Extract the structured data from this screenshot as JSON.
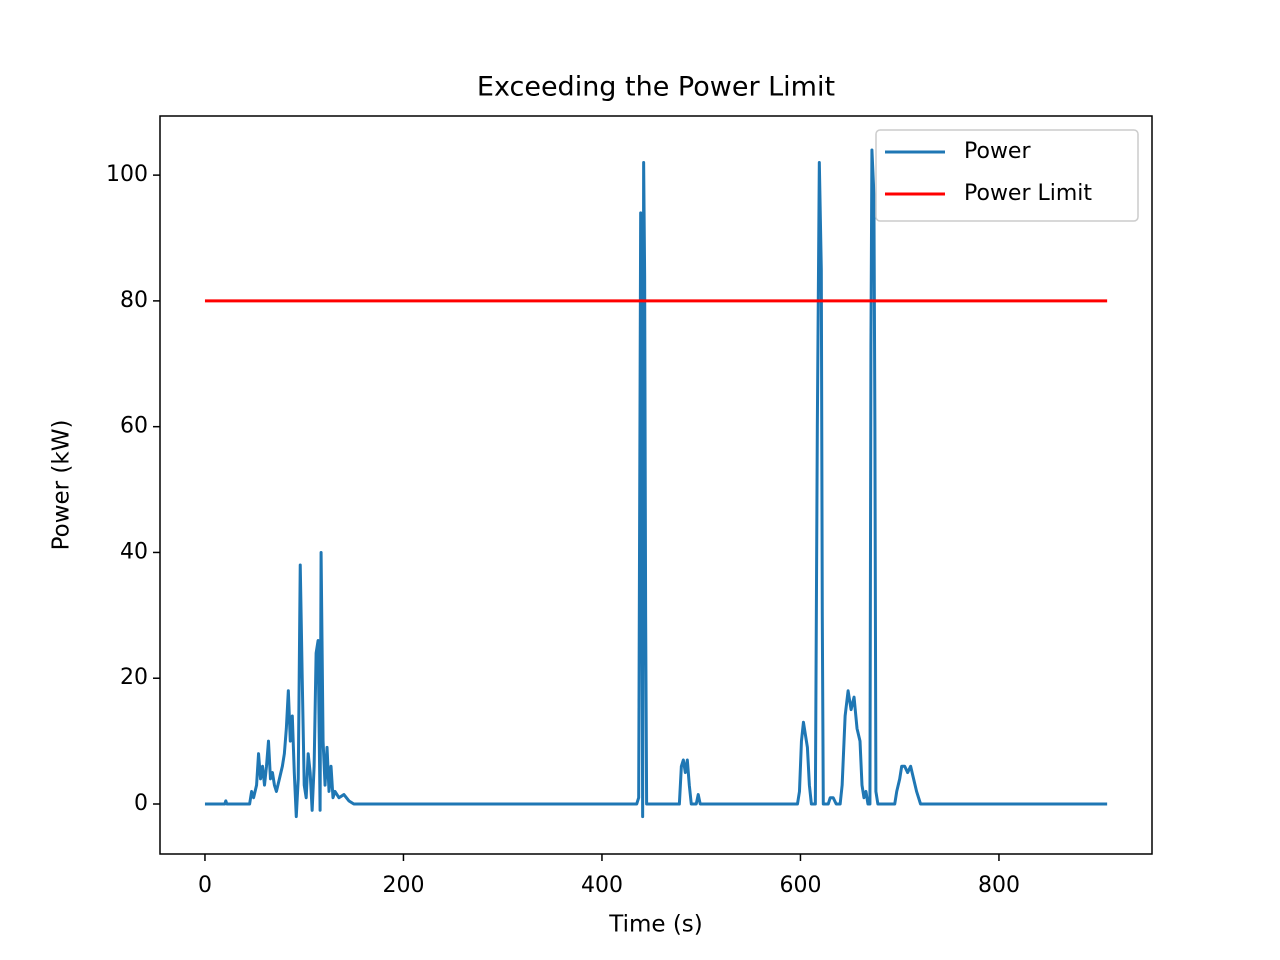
{
  "chart_data": {
    "type": "line",
    "title": "Exceeding the Power Limit",
    "xlabel": "Time (s)",
    "ylabel": "Power (kW)",
    "xlim": [
      -45.3,
      954.2
    ],
    "ylim": [
      -7.95,
      109.4
    ],
    "xticks": [
      0,
      200,
      400,
      600,
      800
    ],
    "yticks": [
      0,
      20,
      40,
      60,
      80,
      100
    ],
    "legend": "upper right",
    "series": [
      {
        "name": "Power",
        "color": "#1f77b4",
        "x": [
          0,
          20,
          21,
          22,
          45,
          47,
          49,
          52,
          54,
          56,
          58,
          60,
          62,
          64,
          66,
          68,
          70,
          72,
          75,
          78,
          80,
          82,
          84,
          86,
          88,
          90,
          92,
          94,
          96,
          98,
          100,
          102,
          104,
          106,
          108,
          110,
          112,
          114,
          116,
          117,
          119,
          121,
          123,
          125,
          127,
          129,
          131,
          135,
          140,
          145,
          150,
          435,
          437,
          439,
          441,
          442,
          443,
          444,
          445,
          478,
          480,
          482,
          484,
          486,
          488,
          490,
          495,
          497,
          499,
          597,
          599,
          601,
          603,
          605,
          607,
          609,
          611,
          615,
          617,
          619,
          621,
          622,
          623,
          628,
          630,
          633,
          636,
          640,
          642,
          645,
          648,
          651,
          654,
          657,
          660,
          662,
          664,
          666,
          668,
          670,
          671,
          672,
          674,
          675,
          676,
          678,
          695,
          697,
          700,
          702,
          705,
          708,
          711,
          714,
          717,
          719,
          721,
          909
        ],
        "values": [
          0,
          0,
          0.5,
          0,
          0,
          2,
          1,
          3,
          8,
          4,
          6,
          3,
          6,
          10,
          4,
          5,
          3,
          2,
          4,
          6,
          8,
          12,
          18,
          10,
          14,
          5,
          -2,
          4,
          38,
          20,
          3,
          1,
          8,
          5,
          -1,
          6,
          24,
          26,
          -1,
          40,
          10,
          3,
          9,
          2,
          6,
          1,
          2,
          1,
          1.5,
          0.5,
          0,
          0,
          1,
          94,
          -2,
          102,
          84,
          30,
          0,
          0,
          6,
          7,
          5,
          7,
          3,
          0,
          0,
          1.5,
          0,
          0,
          2,
          10,
          13,
          11,
          9,
          3,
          0,
          0,
          60,
          102,
          85,
          30,
          0,
          0,
          1,
          1,
          0,
          0,
          3,
          14,
          18,
          15,
          17,
          12,
          10,
          3,
          1,
          2,
          0,
          0,
          73,
          104,
          97,
          60,
          2,
          0,
          0,
          2,
          4,
          6,
          6,
          5,
          6,
          4,
          2,
          1,
          0,
          0
        ]
      },
      {
        "name": "Power Limit",
        "color": "#ff0000",
        "x": [
          0,
          909
        ],
        "values": [
          80,
          80
        ]
      }
    ]
  }
}
